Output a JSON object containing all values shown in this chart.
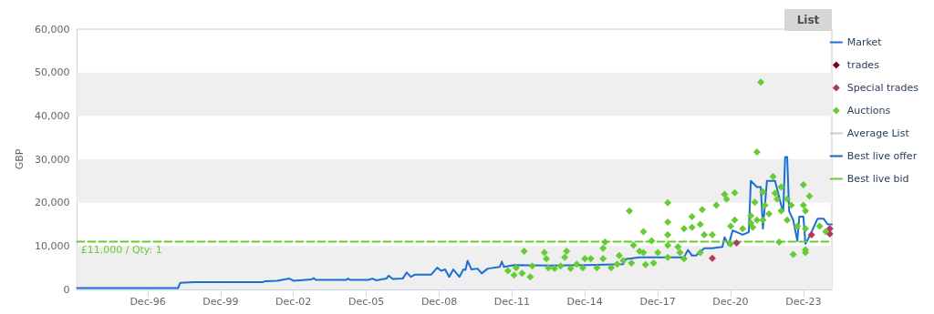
{
  "chart_data": {
    "type": "line",
    "ylabel": "GBP",
    "xlim": [
      "1994-01",
      "2025-02"
    ],
    "ylim": [
      0,
      60000
    ],
    "xticks": [
      {
        "value": "1996-12",
        "label": "Dec-96"
      },
      {
        "value": "1999-12",
        "label": "Dec-99"
      },
      {
        "value": "2002-12",
        "label": "Dec-02"
      },
      {
        "value": "2005-12",
        "label": "Dec-05"
      },
      {
        "value": "2008-12",
        "label": "Dec-08"
      },
      {
        "value": "2011-12",
        "label": "Dec-11"
      },
      {
        "value": "2014-12",
        "label": "Dec-14"
      },
      {
        "value": "2017-12",
        "label": "Dec-17"
      },
      {
        "value": "2020-12",
        "label": "Dec-20"
      },
      {
        "value": "2023-12",
        "label": "Dec-23"
      }
    ],
    "yticks": [
      0,
      {
        "value": 10000,
        "label": "10,000"
      },
      {
        "value": 20000,
        "label": "20,000"
      },
      {
        "value": 30000,
        "label": "30,000"
      },
      {
        "value": 40000,
        "label": "40,000"
      },
      {
        "value": 50000,
        "label": "50,000"
      },
      {
        "value": 60000,
        "label": "60,000"
      }
    ],
    "grid": false,
    "legend": "right",
    "bands": [
      {
        "axis": "y",
        "from": 0,
        "to": 10000,
        "color": "#efefef"
      },
      {
        "axis": "y",
        "from": 20000,
        "to": 30000,
        "color": "#efefef"
      },
      {
        "axis": "y",
        "from": 40000,
        "to": 50000,
        "color": "#efefef"
      }
    ],
    "annotations": [
      "List",
      {
        "text": "£11,000 / Qty: 1",
        "x": "1994-03",
        "y": 11000
      }
    ],
    "series": [
      {
        "name": "Market",
        "color": "#1a6fd0",
        "marker": "none",
        "line_style": "solid",
        "x": [
          "1994-01",
          "1998-03",
          "1998-04",
          "1998-11",
          "2001-09",
          "2001-10",
          "2002-04",
          "2002-10",
          "2002-12",
          "2003-09",
          "2003-10",
          "2003-11",
          "2005-02",
          "2005-03",
          "2005-04",
          "2006-01",
          "2006-03",
          "2006-05",
          "2006-10",
          "2006-11",
          "2007-01",
          "2007-06",
          "2007-08",
          "2007-10",
          "2007-12",
          "2008-08",
          "2008-11",
          "2009-01",
          "2009-03",
          "2009-05",
          "2009-07",
          "2009-10",
          "2009-12",
          "2010-01",
          "2010-02",
          "2010-04",
          "2010-07",
          "2010-09",
          "2010-12",
          "2011-06",
          "2011-07",
          "2011-08",
          "2012-01",
          "2013-07",
          "2015-01",
          "2016-07",
          "2016-08",
          "2017-03",
          "2019-01",
          "2019-03",
          "2019-05",
          "2019-07",
          "2019-11",
          "2020-03",
          "2020-08",
          "2020-09",
          "2020-11",
          "2021-01",
          "2021-06",
          "2021-09",
          "2021-10",
          "2022-01",
          "2022-03",
          "2022-04",
          "2022-06",
          "2022-10",
          "2023-01",
          "2023-02",
          "2023-03",
          "2023-04",
          "2023-05",
          "2023-07",
          "2023-09",
          "2023-10",
          "2023-12",
          "2024-01",
          "2024-03",
          "2024-07",
          "2024-10",
          "2024-12",
          "2025-02"
        ],
        "values": [
          300,
          300,
          1500,
          1700,
          1700,
          1900,
          2000,
          2500,
          2000,
          2300,
          2600,
          2200,
          2200,
          2500,
          2200,
          2200,
          2500,
          2100,
          2500,
          3200,
          2400,
          2500,
          3900,
          2900,
          3400,
          3400,
          5000,
          4300,
          4600,
          2900,
          4600,
          2900,
          4600,
          4500,
          6600,
          4600,
          4800,
          3700,
          4800,
          5200,
          6400,
          5200,
          5600,
          5500,
          5600,
          5800,
          7000,
          7400,
          7400,
          9100,
          7800,
          7800,
          9500,
          9500,
          9800,
          12000,
          10200,
          13600,
          12600,
          13200,
          25000,
          23600,
          23600,
          14000,
          25000,
          25000,
          19400,
          18000,
          30500,
          30500,
          18000,
          16000,
          11200,
          16800,
          16800,
          10500,
          12200,
          16300,
          16300,
          15000,
          15000
        ]
      },
      {
        "name": "trades",
        "type": "scatter",
        "color": "#7a0032",
        "marker": "diamond"
      },
      {
        "name": "Special trades",
        "type": "scatter",
        "color": "#b5385a",
        "marker": "diamond",
        "x": [
          "2020-03",
          "2021-03",
          "2024-04",
          "2025-01",
          "2025-01"
        ],
        "values": [
          7200,
          10700,
          12600,
          14000,
          12800
        ]
      },
      {
        "name": "Auctions",
        "type": "scatter",
        "color": "#66cc33",
        "marker": "diamond",
        "x": [
          "2011-10",
          "2012-01",
          "2012-02",
          "2012-05",
          "2012-06",
          "2012-09",
          "2012-10",
          "2013-04",
          "2013-05",
          "2013-06",
          "2013-09",
          "2013-12",
          "2014-02",
          "2014-03",
          "2014-05",
          "2014-08",
          "2014-11",
          "2014-12",
          "2015-03",
          "2015-06",
          "2015-09",
          "2015-09",
          "2015-10",
          "2016-01",
          "2016-04",
          "2016-05",
          "2016-07",
          "2016-10",
          "2016-11",
          "2016-12",
          "2017-03",
          "2017-05",
          "2017-05",
          "2017-06",
          "2017-09",
          "2017-10",
          "2017-12",
          "2018-05",
          "2018-05",
          "2018-05",
          "2018-05",
          "2018-05",
          "2018-10",
          "2018-11",
          "2019-01",
          "2019-01",
          "2019-05",
          "2019-05",
          "2019-09",
          "2019-09",
          "2019-10",
          "2019-11",
          "2020-03",
          "2020-05",
          "2020-09",
          "2020-10",
          "2020-12",
          "2020-12",
          "2021-02",
          "2021-02",
          "2021-06",
          "2021-10",
          "2021-10",
          "2021-11",
          "2021-12",
          "2022-01",
          "2022-01",
          "2022-03",
          "2022-04",
          "2022-04",
          "2022-05",
          "2022-07",
          "2022-09",
          "2022-10",
          "2022-11",
          "2022-12",
          "2023-01",
          "2023-01",
          "2023-04",
          "2023-04",
          "2023-06",
          "2023-07",
          "2023-09",
          "2023-12",
          "2023-12",
          "2024-01",
          "2024-01",
          "2024-01",
          "2024-01",
          "2024-03",
          "2024-08",
          "2024-11"
        ],
        "values": [
          4300,
          3300,
          5000,
          3700,
          8800,
          2900,
          5400,
          8500,
          7100,
          5000,
          4800,
          5400,
          7400,
          8800,
          4800,
          5800,
          5000,
          7100,
          7100,
          5000,
          7100,
          9500,
          10900,
          5000,
          5800,
          7800,
          6600,
          18100,
          6100,
          10200,
          8800,
          13300,
          8500,
          5700,
          11200,
          6100,
          8500,
          20000,
          15500,
          12600,
          10200,
          7400,
          9800,
          8500,
          14000,
          7100,
          16800,
          14300,
          15000,
          8500,
          18400,
          12600,
          12600,
          19400,
          21900,
          20800,
          14600,
          10500,
          22300,
          16000,
          14000,
          17000,
          15300,
          14300,
          20100,
          31700,
          16000,
          47800,
          22500,
          16000,
          19400,
          17400,
          26000,
          22200,
          20800,
          10900,
          23600,
          18100,
          20800,
          16000,
          19400,
          8100,
          14600,
          24100,
          19400,
          18100,
          8500,
          14000,
          9100,
          21500,
          14600,
          13300
        ]
      },
      {
        "name": "Average List",
        "color": "#cccccc",
        "marker": "none",
        "line_style": "solid"
      },
      {
        "name": "Best live offer",
        "color": "#1565c0",
        "marker": "none",
        "line_style": "dashed"
      },
      {
        "name": "Best live bid",
        "color": "#66cc33",
        "marker": "none",
        "line_style": "dashed",
        "x": [
          "1994-01",
          "2025-02"
        ],
        "values": [
          11000,
          11000
        ]
      }
    ]
  }
}
